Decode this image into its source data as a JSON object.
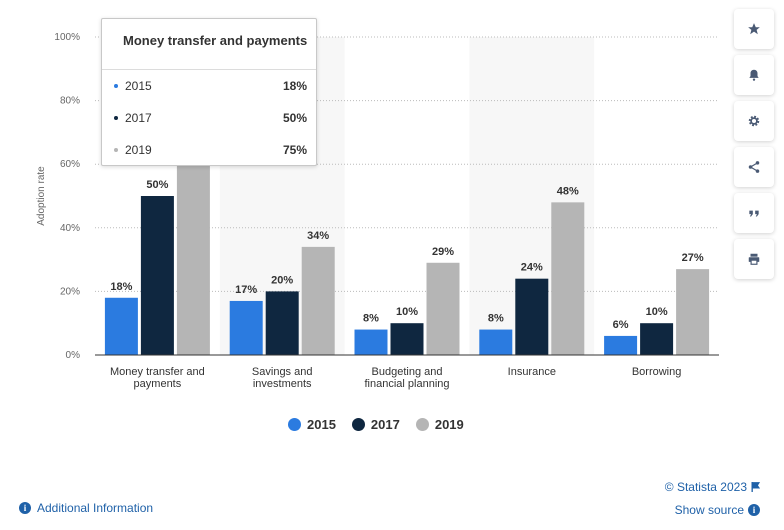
{
  "chart_data": {
    "type": "bar",
    "categories": [
      [
        "Money transfer and",
        "payments"
      ],
      [
        "Savings and",
        "investments"
      ],
      [
        "Budgeting and",
        "financial planning"
      ],
      [
        "Insurance"
      ],
      [
        "Borrowing"
      ]
    ],
    "series": [
      {
        "name": "2015",
        "values": [
          18,
          17,
          8,
          8,
          6
        ],
        "color": "#2b7be0"
      },
      {
        "name": "2017",
        "values": [
          50,
          20,
          10,
          24,
          10
        ],
        "color": "#0f2740"
      },
      {
        "name": "2019",
        "values": [
          75,
          34,
          29,
          48,
          27
        ],
        "color": "#b5b5b5"
      }
    ],
    "value_suffix": "%",
    "ylabel": "Adoption rate",
    "ylim": [
      0,
      100
    ],
    "yticks": [
      "0%",
      "20%",
      "40%",
      "60%",
      "80%",
      "100%"
    ],
    "grid": true,
    "legend_placement": "bottom"
  },
  "tooltip": {
    "title": "Money transfer and payments",
    "rows": [
      {
        "name": "2015",
        "value": "18%",
        "color": "#2b7be0"
      },
      {
        "name": "2017",
        "value": "50%",
        "color": "#0f2740"
      },
      {
        "name": "2019",
        "value": "75%",
        "color": "#b5b5b5"
      }
    ]
  },
  "legend": [
    {
      "label": "2015",
      "color": "#2b7be0"
    },
    {
      "label": "2017",
      "color": "#0f2740"
    },
    {
      "label": "2019",
      "color": "#b5b5b5"
    }
  ],
  "sidebar": [
    {
      "icon": "star-icon",
      "label": "★"
    },
    {
      "icon": "bell-icon",
      "label": "bell"
    },
    {
      "icon": "gear-icon",
      "label": "gear"
    },
    {
      "icon": "share-icon",
      "label": "share"
    },
    {
      "icon": "quote-icon",
      "label": "“"
    },
    {
      "icon": "print-icon",
      "label": "print"
    }
  ],
  "footer": {
    "copyright": "© Statista 2023",
    "show_source": "Show source",
    "additional_info": "Additional Information"
  }
}
